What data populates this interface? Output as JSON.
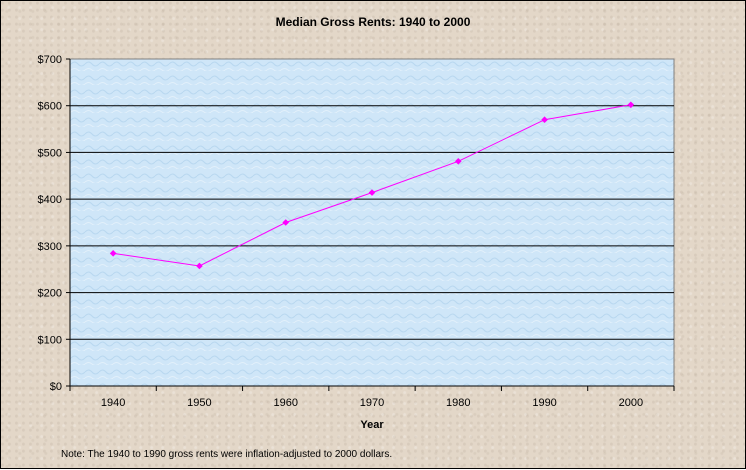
{
  "chart_data": {
    "type": "line",
    "title": "Median Gross Rents:  1940 to 2000",
    "xlabel": "Year",
    "ylabel": "",
    "categories": [
      "1940",
      "1950",
      "1960",
      "1970",
      "1980",
      "1990",
      "2000"
    ],
    "series": [
      {
        "values": [
          284,
          257,
          350,
          414,
          481,
          570,
          602
        ]
      }
    ],
    "ylim": [
      0,
      700
    ],
    "y_ticks": [
      "$0",
      "$100",
      "$200",
      "$300",
      "$400",
      "$500",
      "$600",
      "$700"
    ],
    "grid": true,
    "legend": "none",
    "note": "Note:  The 1940 to 1990 gross rents were inflation-adjusted to 2000 dollars."
  },
  "colors": {
    "line": "#ff00ff",
    "plot_background": "#cfe6f8",
    "gridline": "#000000"
  }
}
